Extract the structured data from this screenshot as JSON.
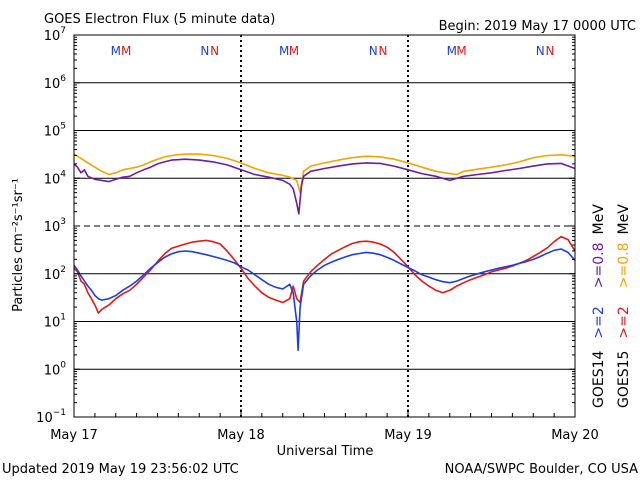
{
  "header": {
    "title": "GOES Electron Flux (5 minute data)",
    "begin": "Begin: 2019 May 17 0000 UTC"
  },
  "footer": {
    "updated": "Updated 2019 May 19 23:56:02 UTC",
    "credit": "NOAA/SWPC Boulder, CO USA"
  },
  "chart_data": {
    "type": "line",
    "title": "GOES Electron Flux (5 minute data)",
    "xlabel": "Universal Time",
    "ylabel": "Particles cm⁻²s⁻¹sr⁻¹",
    "yscale": "log",
    "ylim": [
      0.1,
      10000000
    ],
    "xlim": [
      0,
      72
    ],
    "x_unit": "hours since 2019 May 17 0000 UTC",
    "x_ticks": [
      {
        "x": 0,
        "label": "May 17"
      },
      {
        "x": 24,
        "label": "May 18"
      },
      {
        "x": 48,
        "label": "May 19"
      },
      {
        "x": 72,
        "label": "May 20"
      }
    ],
    "y_ticks": [
      {
        "exp": -1,
        "label": "10",
        "sup": "−1"
      },
      {
        "exp": 0,
        "label": "10",
        "sup": "0"
      },
      {
        "exp": 1,
        "label": "10",
        "sup": "1"
      },
      {
        "exp": 2,
        "label": "10",
        "sup": "2"
      },
      {
        "exp": 3,
        "label": "10",
        "sup": "3"
      },
      {
        "exp": 4,
        "label": "10",
        "sup": "4"
      },
      {
        "exp": 5,
        "label": "10",
        "sup": "5"
      },
      {
        "exp": 6,
        "label": "10",
        "sup": "6"
      },
      {
        "exp": 7,
        "label": "10",
        "sup": "7"
      }
    ],
    "threshold": 1000,
    "grid": true,
    "legend": [
      {
        "sat": "GOES14",
        "channel": ">=2",
        "unit": "",
        "color": "#1f3fdc"
      },
      {
        "sat": "GOES14",
        "channel": ">=0.8",
        "unit": "MeV",
        "color": "#6a1fa0"
      },
      {
        "sat": "GOES15",
        "channel": ">=2",
        "unit": "",
        "color": "#e01a1a"
      },
      {
        "sat": "GOES15",
        "channel": ">=0.8",
        "unit": "MeV",
        "color": "#f0a500"
      }
    ],
    "markers": [
      {
        "x": 6.0,
        "text": "M",
        "color": "#1f3fdc"
      },
      {
        "x": 7.5,
        "text": "M",
        "color": "#e01a1a"
      },
      {
        "x": 18.8,
        "text": "N",
        "color": "#1f3fdc"
      },
      {
        "x": 20.2,
        "text": "N",
        "color": "#e01a1a"
      },
      {
        "x": 30.2,
        "text": "M",
        "color": "#1f3fdc"
      },
      {
        "x": 31.6,
        "text": "M",
        "color": "#e01a1a"
      },
      {
        "x": 43.0,
        "text": "N",
        "color": "#1f3fdc"
      },
      {
        "x": 44.4,
        "text": "N",
        "color": "#e01a1a"
      },
      {
        "x": 54.3,
        "text": "M",
        "color": "#1f3fdc"
      },
      {
        "x": 55.7,
        "text": "M",
        "color": "#e01a1a"
      },
      {
        "x": 67.0,
        "text": "N",
        "color": "#1f3fdc"
      },
      {
        "x": 68.4,
        "text": "N",
        "color": "#e01a1a"
      }
    ],
    "series": [
      {
        "name": "GOES15 >=0.8 MeV",
        "color": "#f0a500",
        "points": [
          [
            0,
            32000
          ],
          [
            1,
            26000
          ],
          [
            2,
            21000
          ],
          [
            3,
            17000
          ],
          [
            4,
            14000
          ],
          [
            5,
            12000
          ],
          [
            6,
            13000
          ],
          [
            7,
            15000
          ],
          [
            8,
            16000
          ],
          [
            9,
            17000
          ],
          [
            10,
            19000
          ],
          [
            11,
            22000
          ],
          [
            12,
            25000
          ],
          [
            13,
            28000
          ],
          [
            14,
            30000
          ],
          [
            16,
            32000
          ],
          [
            18,
            32000
          ],
          [
            20,
            30000
          ],
          [
            22,
            26000
          ],
          [
            24,
            21000
          ],
          [
            26,
            16000
          ],
          [
            28,
            13000
          ],
          [
            30,
            11500
          ],
          [
            31,
            10500
          ],
          [
            32,
            9000
          ],
          [
            32.5,
            5000
          ],
          [
            33,
            14000
          ],
          [
            34,
            18000
          ],
          [
            36,
            21000
          ],
          [
            38,
            24000
          ],
          [
            40,
            27000
          ],
          [
            42,
            29000
          ],
          [
            44,
            28000
          ],
          [
            46,
            25000
          ],
          [
            48,
            21000
          ],
          [
            50,
            17000
          ],
          [
            52,
            14000
          ],
          [
            54,
            12500
          ],
          [
            55,
            12000
          ],
          [
            56,
            14000
          ],
          [
            58,
            15500
          ],
          [
            60,
            17000
          ],
          [
            62,
            19000
          ],
          [
            64,
            22000
          ],
          [
            66,
            27000
          ],
          [
            68,
            30000
          ],
          [
            70,
            31000
          ],
          [
            72,
            29000
          ]
        ]
      },
      {
        "name": "GOES14 >=0.8 MeV",
        "color": "#6a1fa0",
        "points": [
          [
            0,
            20000
          ],
          [
            0.5,
            17000
          ],
          [
            1,
            13000
          ],
          [
            1.5,
            15000
          ],
          [
            2,
            11000
          ],
          [
            3,
            9500
          ],
          [
            4,
            9000
          ],
          [
            5,
            8500
          ],
          [
            6,
            9500
          ],
          [
            7,
            10500
          ],
          [
            8,
            11000
          ],
          [
            9,
            13000
          ],
          [
            10,
            15000
          ],
          [
            11,
            17000
          ],
          [
            12,
            20000
          ],
          [
            13,
            22000
          ],
          [
            14,
            24000
          ],
          [
            16,
            25000
          ],
          [
            18,
            24000
          ],
          [
            20,
            22000
          ],
          [
            22,
            19000
          ],
          [
            24,
            15000
          ],
          [
            26,
            12000
          ],
          [
            28,
            10500
          ],
          [
            30,
            9000
          ],
          [
            31,
            7500
          ],
          [
            31.5,
            6000
          ],
          [
            32,
            3000
          ],
          [
            32.3,
            1800
          ],
          [
            32.7,
            7000
          ],
          [
            33,
            11000
          ],
          [
            34,
            14000
          ],
          [
            36,
            16000
          ],
          [
            38,
            18000
          ],
          [
            40,
            20000
          ],
          [
            42,
            21000
          ],
          [
            44,
            20500
          ],
          [
            46,
            18000
          ],
          [
            48,
            15000
          ],
          [
            50,
            12500
          ],
          [
            52,
            11000
          ],
          [
            53,
            10000
          ],
          [
            54,
            9000
          ],
          [
            55,
            10000
          ],
          [
            56,
            11000
          ],
          [
            58,
            12000
          ],
          [
            60,
            13000
          ],
          [
            62,
            14500
          ],
          [
            64,
            16000
          ],
          [
            66,
            18000
          ],
          [
            68,
            20000
          ],
          [
            70,
            20500
          ],
          [
            72,
            16000
          ]
        ]
      },
      {
        "name": "GOES15 >=2 MeV",
        "color": "#e01a1a",
        "points": [
          [
            0,
            130
          ],
          [
            0.5,
            110
          ],
          [
            1,
            70
          ],
          [
            1.5,
            60
          ],
          [
            2,
            40
          ],
          [
            2.5,
            30
          ],
          [
            3,
            22
          ],
          [
            3.5,
            15
          ],
          [
            4,
            18
          ],
          [
            5,
            22
          ],
          [
            6,
            30
          ],
          [
            7,
            38
          ],
          [
            8,
            45
          ],
          [
            9,
            60
          ],
          [
            10,
            85
          ],
          [
            11,
            120
          ],
          [
            12,
            180
          ],
          [
            13,
            260
          ],
          [
            14,
            340
          ],
          [
            15,
            380
          ],
          [
            16,
            420
          ],
          [
            17,
            460
          ],
          [
            18,
            480
          ],
          [
            19,
            500
          ],
          [
            20,
            470
          ],
          [
            21,
            420
          ],
          [
            22,
            300
          ],
          [
            23,
            200
          ],
          [
            24,
            130
          ],
          [
            25,
            80
          ],
          [
            26,
            55
          ],
          [
            27,
            40
          ],
          [
            28,
            32
          ],
          [
            29,
            28
          ],
          [
            30,
            25
          ],
          [
            31,
            30
          ],
          [
            31.5,
            55
          ],
          [
            32,
            30
          ],
          [
            32.5,
            25
          ],
          [
            33,
            70
          ],
          [
            34,
            110
          ],
          [
            35,
            150
          ],
          [
            36,
            200
          ],
          [
            37,
            260
          ],
          [
            38,
            310
          ],
          [
            39,
            370
          ],
          [
            40,
            430
          ],
          [
            41,
            470
          ],
          [
            42,
            480
          ],
          [
            43,
            460
          ],
          [
            44,
            420
          ],
          [
            45,
            360
          ],
          [
            46,
            280
          ],
          [
            47,
            200
          ],
          [
            48,
            140
          ],
          [
            49,
            95
          ],
          [
            50,
            70
          ],
          [
            51,
            55
          ],
          [
            52,
            45
          ],
          [
            53,
            40
          ],
          [
            54,
            45
          ],
          [
            55,
            55
          ],
          [
            56,
            65
          ],
          [
            57,
            75
          ],
          [
            58,
            85
          ],
          [
            59,
            95
          ],
          [
            60,
            110
          ],
          [
            61,
            120
          ],
          [
            62,
            130
          ],
          [
            63,
            145
          ],
          [
            64,
            165
          ],
          [
            65,
            190
          ],
          [
            66,
            230
          ],
          [
            67,
            280
          ],
          [
            68,
            350
          ],
          [
            69,
            470
          ],
          [
            70,
            600
          ],
          [
            71,
            520
          ],
          [
            72,
            300
          ]
        ]
      },
      {
        "name": "GOES14 >=2 MeV",
        "color": "#1f3fdc",
        "points": [
          [
            0,
            150
          ],
          [
            0.5,
            120
          ],
          [
            1,
            90
          ],
          [
            1.5,
            70
          ],
          [
            2,
            55
          ],
          [
            2.5,
            45
          ],
          [
            3,
            35
          ],
          [
            3.5,
            30
          ],
          [
            4,
            28
          ],
          [
            5,
            30
          ],
          [
            6,
            35
          ],
          [
            7,
            45
          ],
          [
            8,
            55
          ],
          [
            9,
            70
          ],
          [
            10,
            95
          ],
          [
            11,
            130
          ],
          [
            12,
            170
          ],
          [
            13,
            220
          ],
          [
            14,
            260
          ],
          [
            15,
            290
          ],
          [
            16,
            300
          ],
          [
            17,
            290
          ],
          [
            18,
            270
          ],
          [
            19,
            250
          ],
          [
            20,
            230
          ],
          [
            21,
            210
          ],
          [
            22,
            190
          ],
          [
            23,
            170
          ],
          [
            24,
            140
          ],
          [
            25,
            120
          ],
          [
            26,
            95
          ],
          [
            27,
            75
          ],
          [
            28,
            60
          ],
          [
            29,
            52
          ],
          [
            30,
            48
          ],
          [
            31,
            60
          ],
          [
            31.5,
            40
          ],
          [
            32,
            10
          ],
          [
            32.2,
            2.5
          ],
          [
            32.5,
            20
          ],
          [
            33,
            60
          ],
          [
            34,
            90
          ],
          [
            35,
            120
          ],
          [
            36,
            150
          ],
          [
            37,
            175
          ],
          [
            38,
            200
          ],
          [
            39,
            225
          ],
          [
            40,
            250
          ],
          [
            41,
            265
          ],
          [
            42,
            280
          ],
          [
            43,
            270
          ],
          [
            44,
            250
          ],
          [
            45,
            220
          ],
          [
            46,
            190
          ],
          [
            47,
            160
          ],
          [
            48,
            135
          ],
          [
            49,
            115
          ],
          [
            50,
            95
          ],
          [
            51,
            85
          ],
          [
            52,
            75
          ],
          [
            53,
            68
          ],
          [
            54,
            65
          ],
          [
            55,
            70
          ],
          [
            56,
            80
          ],
          [
            57,
            90
          ],
          [
            58,
            100
          ],
          [
            59,
            110
          ],
          [
            60,
            120
          ],
          [
            61,
            130
          ],
          [
            62,
            140
          ],
          [
            63,
            150
          ],
          [
            64,
            165
          ],
          [
            65,
            180
          ],
          [
            66,
            200
          ],
          [
            67,
            230
          ],
          [
            68,
            270
          ],
          [
            69,
            310
          ],
          [
            70,
            330
          ],
          [
            71,
            280
          ],
          [
            72,
            190
          ]
        ]
      }
    ]
  }
}
